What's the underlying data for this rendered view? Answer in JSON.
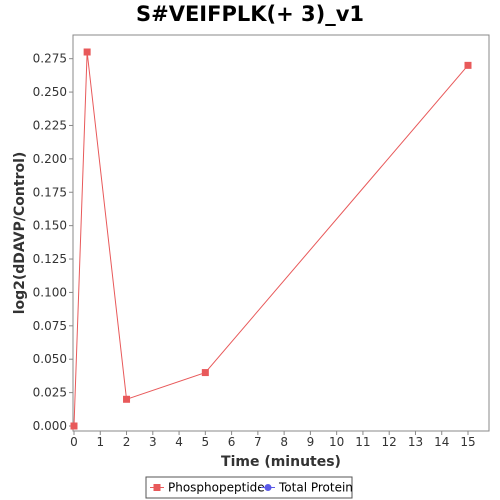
{
  "chart_data": {
    "type": "line",
    "title": "S#VEIFPLK(+ 3)_v1",
    "xlabel": "Time (minutes)",
    "ylabel": "log2(dDAVP/Control)",
    "xlim": [
      0,
      16
    ],
    "ylim": [
      0,
      0.29
    ],
    "x_ticks": [
      "0",
      "1",
      "2",
      "3",
      "4",
      "5",
      "6",
      "7",
      "8",
      "9",
      "10",
      "11",
      "12",
      "13",
      "14",
      "15"
    ],
    "y_ticks": [
      "0.000",
      "0.025",
      "0.050",
      "0.075",
      "0.100",
      "0.125",
      "0.150",
      "0.175",
      "0.200",
      "0.225",
      "0.250",
      "0.275"
    ],
    "grid": false,
    "legend_position": "bottom",
    "series": [
      {
        "name": "Phosphopeptide",
        "color": "#e8595a",
        "marker": "square",
        "x": [
          0,
          0.5,
          2,
          5,
          15
        ],
        "y": [
          0.0,
          0.28,
          0.02,
          0.04,
          0.27
        ]
      },
      {
        "name": "Total Protein",
        "color": "#5a5ae8",
        "marker": "circle",
        "x": [],
        "y": []
      }
    ]
  }
}
